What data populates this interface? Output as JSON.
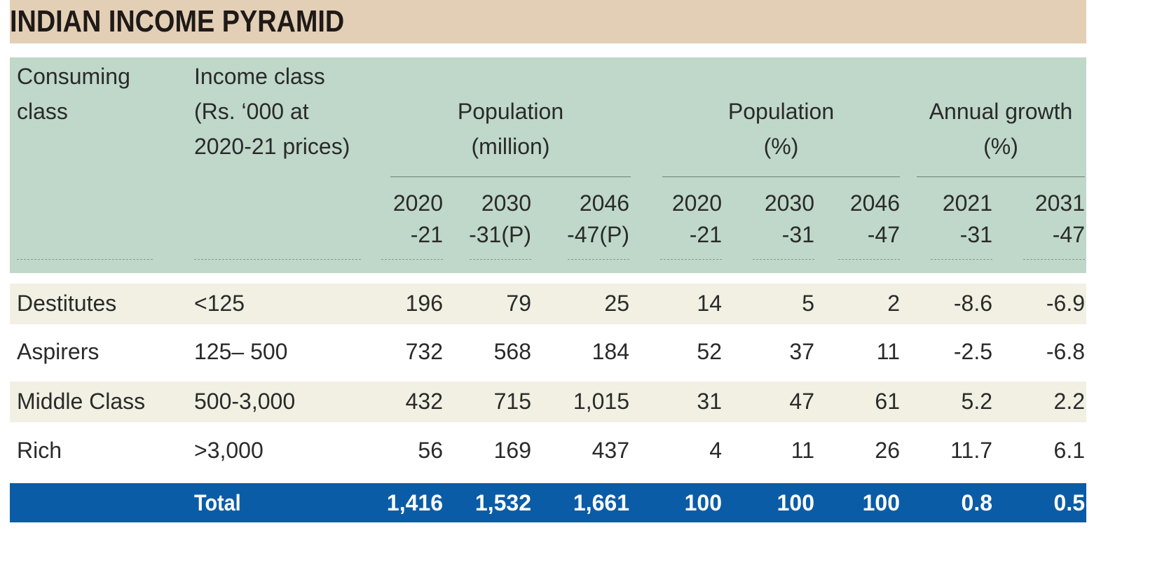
{
  "title": "INDIAN INCOME PYRAMID",
  "colors": {
    "title_bg": "#e3cfb5",
    "header_bg": "#bfd8c9",
    "stripe_bg": "#f1f0e3",
    "total_bg": "#0a5ca6"
  },
  "chart_data": {
    "type": "table",
    "title": "INDIAN INCOME PYRAMID",
    "headers": {
      "consuming_class": [
        "Consuming",
        "class"
      ],
      "income_class": [
        "Income class",
        "(Rs. ‘000 at",
        "2020-21 prices)"
      ],
      "groups": [
        {
          "label": [
            "Population",
            "(million)"
          ],
          "columns": [
            [
              "2020",
              "-21"
            ],
            [
              "2030",
              "-31(P)"
            ],
            [
              "2046",
              "-47(P)"
            ]
          ]
        },
        {
          "label": [
            "Population",
            "(%)"
          ],
          "columns": [
            [
              "2020",
              "-21"
            ],
            [
              "2030",
              "-31"
            ],
            [
              "2046",
              "-47"
            ]
          ]
        },
        {
          "label": [
            "Annual growth",
            "(%)"
          ],
          "columns": [
            [
              "2021",
              "-31"
            ],
            [
              "2031",
              "-47"
            ]
          ]
        }
      ]
    },
    "rows": [
      {
        "class": "Destitutes",
        "income": "<125",
        "values": [
          "196",
          "79",
          "25",
          "14",
          "5",
          "2",
          "-8.6",
          "-6.9"
        ]
      },
      {
        "class": "Aspirers",
        "income": "125– 500",
        "values": [
          "732",
          "568",
          "184",
          "52",
          "37",
          "11",
          "-2.5",
          "-6.8"
        ]
      },
      {
        "class": "Middle Class",
        "income": "500-3,000",
        "values": [
          "432",
          "715",
          "1,015",
          "31",
          "47",
          "61",
          "5.2",
          "2.2"
        ]
      },
      {
        "class": "Rich",
        "income": ">3,000",
        "values": [
          "56",
          "169",
          "437",
          "4",
          "11",
          "26",
          "11.7",
          "6.1"
        ]
      }
    ],
    "total": {
      "label": "Total",
      "values": [
        "1,416",
        "1,532",
        "1,661",
        "100",
        "100",
        "100",
        "0.8",
        "0.5"
      ]
    }
  }
}
